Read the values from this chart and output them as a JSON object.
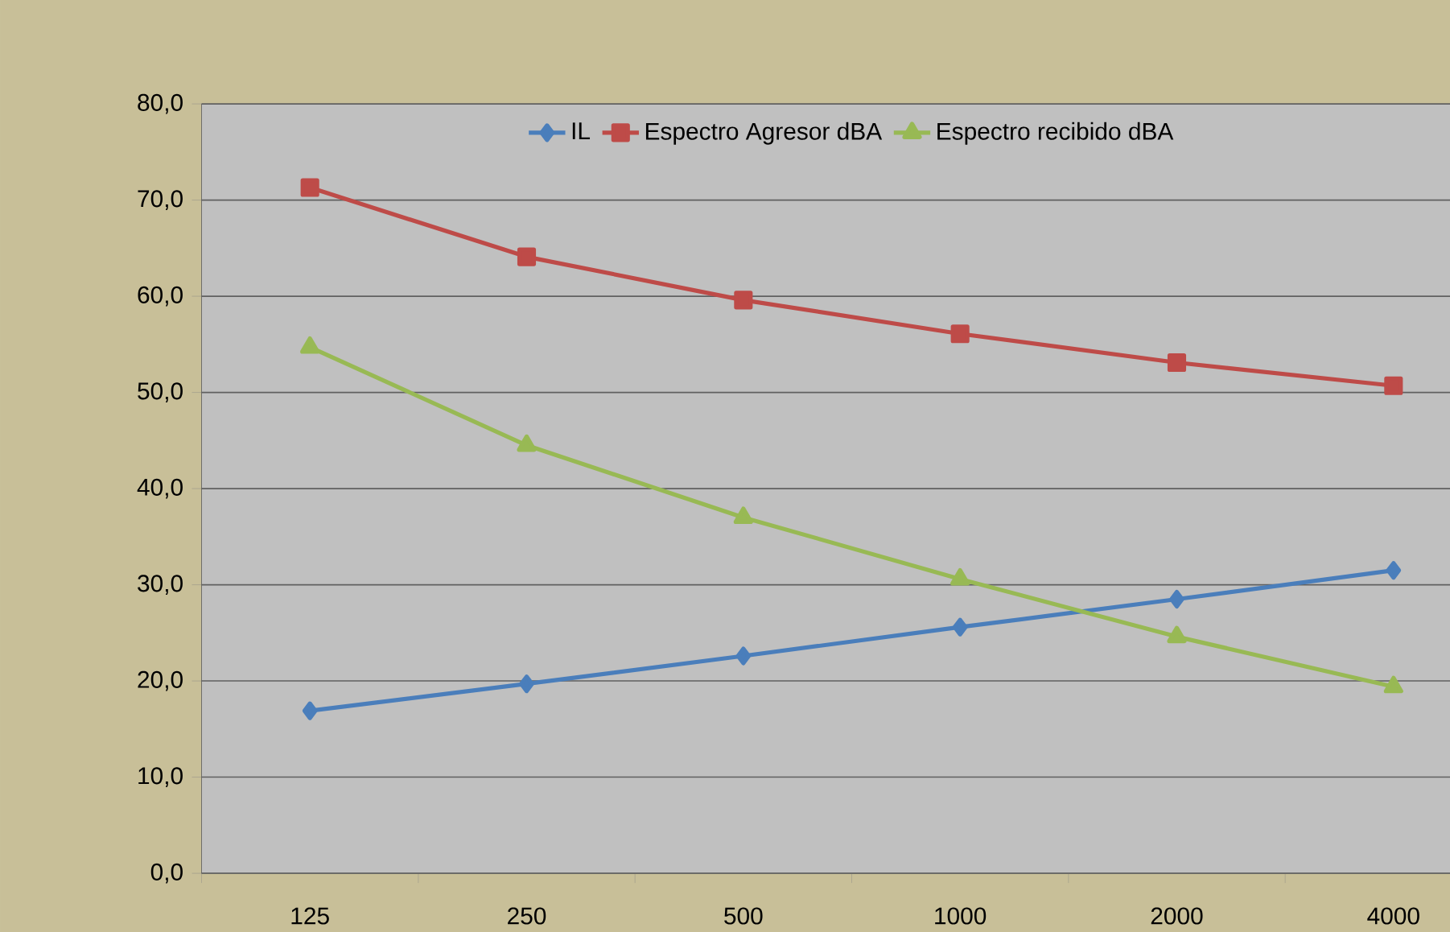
{
  "chart_data": {
    "type": "line",
    "categories": [
      "125",
      "250",
      "500",
      "1000",
      "2000",
      "4000"
    ],
    "series": [
      {
        "name": "IL",
        "color": "#4a7ebb",
        "marker": "diamond",
        "values": [
          16.9,
          19.7,
          22.6,
          25.6,
          28.5,
          31.5
        ]
      },
      {
        "name": "Espectro Agresor dBA",
        "color": "#be4b48",
        "marker": "square",
        "values": [
          71.3,
          64.1,
          59.6,
          56.1,
          53.1,
          50.7
        ]
      },
      {
        "name": "Espectro recibido dBA",
        "color": "#98b954",
        "marker": "triangle",
        "values": [
          54.7,
          44.5,
          37.0,
          30.6,
          24.6,
          19.4
        ]
      }
    ],
    "ylim": [
      0,
      80
    ],
    "yticks": [
      {
        "value": 0,
        "label": "0,0"
      },
      {
        "value": 10,
        "label": "10,0"
      },
      {
        "value": 20,
        "label": "20,0"
      },
      {
        "value": 30,
        "label": "30,0"
      },
      {
        "value": 40,
        "label": "40,0"
      },
      {
        "value": 50,
        "label": "50,0"
      },
      {
        "value": 60,
        "label": "60,0"
      },
      {
        "value": 70,
        "label": "70,0"
      },
      {
        "value": 80,
        "label": "80,0"
      }
    ],
    "grid": "y",
    "legend": "top",
    "line_style": "solid"
  }
}
